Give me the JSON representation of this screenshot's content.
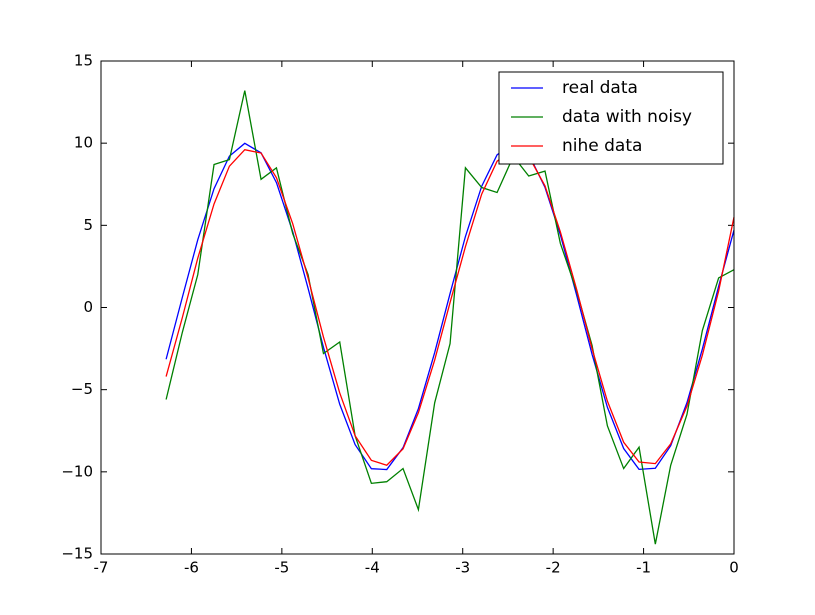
{
  "chart_data": {
    "type": "line",
    "x": [
      -6.28,
      -6.1,
      -5.93,
      -5.75,
      -5.58,
      -5.41,
      -5.23,
      -5.06,
      -4.88,
      -4.71,
      -4.54,
      -4.36,
      -4.19,
      -4.01,
      -3.84,
      -3.66,
      -3.49,
      -3.31,
      -3.14,
      -2.97,
      -2.79,
      -2.62,
      -2.44,
      -2.27,
      -2.09,
      -1.92,
      -1.74,
      -1.57,
      -1.4,
      -1.22,
      -1.05,
      -0.87,
      -0.7,
      -0.52,
      -0.35,
      -0.17,
      0
    ],
    "series": [
      {
        "name": "real data",
        "color": "#0000ff",
        "values": [
          -3.15,
          0.63,
          4.12,
          7.23,
          9.21,
          9.99,
          9.41,
          7.6,
          4.61,
          1.17,
          -2.42,
          -5.89,
          -8.34,
          -9.81,
          -9.86,
          -8.53,
          -6.15,
          -2.74,
          0.85,
          4.32,
          7.38,
          9.29,
          10.0,
          9.33,
          7.31,
          4.42,
          0.75,
          -2.84,
          -6.07,
          -8.58,
          -9.85,
          -9.78,
          -8.41,
          -5.79,
          -2.53,
          1.28,
          4.71
        ]
      },
      {
        "name": "data with noisy",
        "color": "#008000",
        "values": [
          -5.6,
          -1.5,
          2.0,
          8.7,
          9.0,
          13.2,
          7.8,
          8.5,
          4.5,
          2.0,
          -2.8,
          -2.1,
          -7.8,
          -10.7,
          -10.6,
          -9.8,
          -12.3,
          -5.8,
          -2.2,
          8.5,
          7.3,
          7.0,
          9.2,
          8.0,
          8.3,
          3.9,
          1.0,
          -2.3,
          -7.2,
          -9.8,
          -8.5,
          -14.4,
          -9.6,
          -6.5,
          -1.4,
          1.8,
          2.3
        ]
      },
      {
        "name": "nihe data",
        "color": "#ff0000",
        "values": [
          -4.2,
          -0.6,
          3.0,
          6.3,
          8.6,
          9.6,
          9.4,
          7.9,
          5.1,
          1.8,
          -1.8,
          -5.2,
          -7.8,
          -9.3,
          -9.6,
          -8.6,
          -6.4,
          -3.2,
          0.3,
          3.7,
          6.9,
          8.9,
          9.6,
          9.2,
          7.4,
          4.6,
          1.1,
          -2.5,
          -5.7,
          -8.2,
          -9.4,
          -9.5,
          -8.3,
          -6.0,
          -2.9,
          1.0,
          5.5
        ]
      }
    ],
    "xlim": [
      -7,
      0
    ],
    "xticks": [
      -7,
      -6,
      -5,
      -4,
      -3,
      -2,
      -1,
      0
    ],
    "ylim": [
      -15,
      15
    ],
    "yticks": [
      {
        "value": -15,
        "label": "−15"
      },
      {
        "value": -10,
        "label": "−10"
      },
      {
        "value": -5,
        "label": "−5"
      },
      0,
      5,
      10,
      15
    ],
    "legend": "upper right"
  }
}
